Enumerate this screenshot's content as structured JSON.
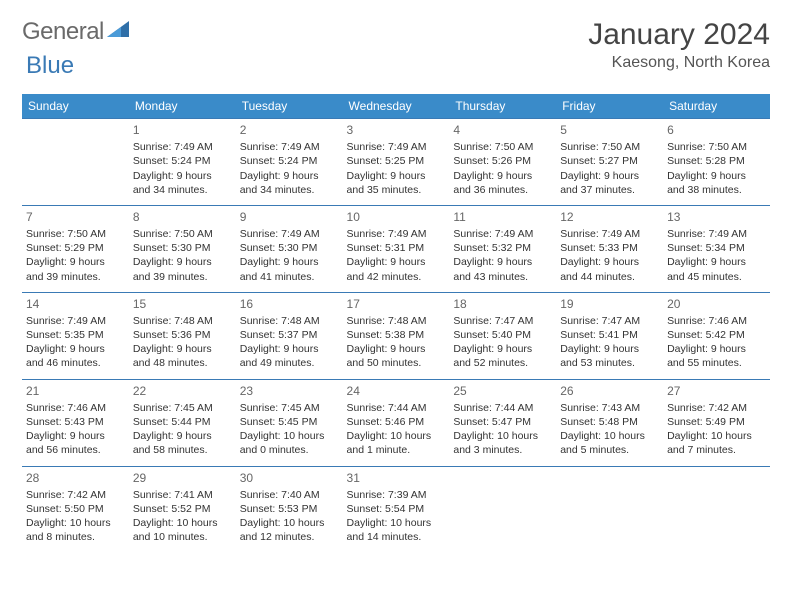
{
  "brand": {
    "part1": "General",
    "part2": "Blue"
  },
  "title": "January 2024",
  "location": "Kaesong, North Korea",
  "dayHeaders": [
    "Sunday",
    "Monday",
    "Tuesday",
    "Wednesday",
    "Thursday",
    "Friday",
    "Saturday"
  ],
  "colors": {
    "headerBg": "#3a8bc9",
    "headerText": "#ffffff",
    "rowBorder": "#3a7ab5",
    "bodyText": "#333333",
    "logoGray": "#6a6a6a",
    "logoBlue": "#3a7ab5",
    "background": "#ffffff"
  },
  "typography": {
    "titleFontSize": 30,
    "locationFontSize": 16,
    "headerFontSize": 12,
    "cellFontSize": 10.5,
    "daynumFontSize": 12
  },
  "firstDayOffset": 1,
  "days": [
    {
      "n": "1",
      "sr": "Sunrise: 7:49 AM",
      "ss": "Sunset: 5:24 PM",
      "d1": "Daylight: 9 hours",
      "d2": "and 34 minutes."
    },
    {
      "n": "2",
      "sr": "Sunrise: 7:49 AM",
      "ss": "Sunset: 5:24 PM",
      "d1": "Daylight: 9 hours",
      "d2": "and 34 minutes."
    },
    {
      "n": "3",
      "sr": "Sunrise: 7:49 AM",
      "ss": "Sunset: 5:25 PM",
      "d1": "Daylight: 9 hours",
      "d2": "and 35 minutes."
    },
    {
      "n": "4",
      "sr": "Sunrise: 7:50 AM",
      "ss": "Sunset: 5:26 PM",
      "d1": "Daylight: 9 hours",
      "d2": "and 36 minutes."
    },
    {
      "n": "5",
      "sr": "Sunrise: 7:50 AM",
      "ss": "Sunset: 5:27 PM",
      "d1": "Daylight: 9 hours",
      "d2": "and 37 minutes."
    },
    {
      "n": "6",
      "sr": "Sunrise: 7:50 AM",
      "ss": "Sunset: 5:28 PM",
      "d1": "Daylight: 9 hours",
      "d2": "and 38 minutes."
    },
    {
      "n": "7",
      "sr": "Sunrise: 7:50 AM",
      "ss": "Sunset: 5:29 PM",
      "d1": "Daylight: 9 hours",
      "d2": "and 39 minutes."
    },
    {
      "n": "8",
      "sr": "Sunrise: 7:50 AM",
      "ss": "Sunset: 5:30 PM",
      "d1": "Daylight: 9 hours",
      "d2": "and 39 minutes."
    },
    {
      "n": "9",
      "sr": "Sunrise: 7:49 AM",
      "ss": "Sunset: 5:30 PM",
      "d1": "Daylight: 9 hours",
      "d2": "and 41 minutes."
    },
    {
      "n": "10",
      "sr": "Sunrise: 7:49 AM",
      "ss": "Sunset: 5:31 PM",
      "d1": "Daylight: 9 hours",
      "d2": "and 42 minutes."
    },
    {
      "n": "11",
      "sr": "Sunrise: 7:49 AM",
      "ss": "Sunset: 5:32 PM",
      "d1": "Daylight: 9 hours",
      "d2": "and 43 minutes."
    },
    {
      "n": "12",
      "sr": "Sunrise: 7:49 AM",
      "ss": "Sunset: 5:33 PM",
      "d1": "Daylight: 9 hours",
      "d2": "and 44 minutes."
    },
    {
      "n": "13",
      "sr": "Sunrise: 7:49 AM",
      "ss": "Sunset: 5:34 PM",
      "d1": "Daylight: 9 hours",
      "d2": "and 45 minutes."
    },
    {
      "n": "14",
      "sr": "Sunrise: 7:49 AM",
      "ss": "Sunset: 5:35 PM",
      "d1": "Daylight: 9 hours",
      "d2": "and 46 minutes."
    },
    {
      "n": "15",
      "sr": "Sunrise: 7:48 AM",
      "ss": "Sunset: 5:36 PM",
      "d1": "Daylight: 9 hours",
      "d2": "and 48 minutes."
    },
    {
      "n": "16",
      "sr": "Sunrise: 7:48 AM",
      "ss": "Sunset: 5:37 PM",
      "d1": "Daylight: 9 hours",
      "d2": "and 49 minutes."
    },
    {
      "n": "17",
      "sr": "Sunrise: 7:48 AM",
      "ss": "Sunset: 5:38 PM",
      "d1": "Daylight: 9 hours",
      "d2": "and 50 minutes."
    },
    {
      "n": "18",
      "sr": "Sunrise: 7:47 AM",
      "ss": "Sunset: 5:40 PM",
      "d1": "Daylight: 9 hours",
      "d2": "and 52 minutes."
    },
    {
      "n": "19",
      "sr": "Sunrise: 7:47 AM",
      "ss": "Sunset: 5:41 PM",
      "d1": "Daylight: 9 hours",
      "d2": "and 53 minutes."
    },
    {
      "n": "20",
      "sr": "Sunrise: 7:46 AM",
      "ss": "Sunset: 5:42 PM",
      "d1": "Daylight: 9 hours",
      "d2": "and 55 minutes."
    },
    {
      "n": "21",
      "sr": "Sunrise: 7:46 AM",
      "ss": "Sunset: 5:43 PM",
      "d1": "Daylight: 9 hours",
      "d2": "and 56 minutes."
    },
    {
      "n": "22",
      "sr": "Sunrise: 7:45 AM",
      "ss": "Sunset: 5:44 PM",
      "d1": "Daylight: 9 hours",
      "d2": "and 58 minutes."
    },
    {
      "n": "23",
      "sr": "Sunrise: 7:45 AM",
      "ss": "Sunset: 5:45 PM",
      "d1": "Daylight: 10 hours",
      "d2": "and 0 minutes."
    },
    {
      "n": "24",
      "sr": "Sunrise: 7:44 AM",
      "ss": "Sunset: 5:46 PM",
      "d1": "Daylight: 10 hours",
      "d2": "and 1 minute."
    },
    {
      "n": "25",
      "sr": "Sunrise: 7:44 AM",
      "ss": "Sunset: 5:47 PM",
      "d1": "Daylight: 10 hours",
      "d2": "and 3 minutes."
    },
    {
      "n": "26",
      "sr": "Sunrise: 7:43 AM",
      "ss": "Sunset: 5:48 PM",
      "d1": "Daylight: 10 hours",
      "d2": "and 5 minutes."
    },
    {
      "n": "27",
      "sr": "Sunrise: 7:42 AM",
      "ss": "Sunset: 5:49 PM",
      "d1": "Daylight: 10 hours",
      "d2": "and 7 minutes."
    },
    {
      "n": "28",
      "sr": "Sunrise: 7:42 AM",
      "ss": "Sunset: 5:50 PM",
      "d1": "Daylight: 10 hours",
      "d2": "and 8 minutes."
    },
    {
      "n": "29",
      "sr": "Sunrise: 7:41 AM",
      "ss": "Sunset: 5:52 PM",
      "d1": "Daylight: 10 hours",
      "d2": "and 10 minutes."
    },
    {
      "n": "30",
      "sr": "Sunrise: 7:40 AM",
      "ss": "Sunset: 5:53 PM",
      "d1": "Daylight: 10 hours",
      "d2": "and 12 minutes."
    },
    {
      "n": "31",
      "sr": "Sunrise: 7:39 AM",
      "ss": "Sunset: 5:54 PM",
      "d1": "Daylight: 10 hours",
      "d2": "and 14 minutes."
    }
  ]
}
